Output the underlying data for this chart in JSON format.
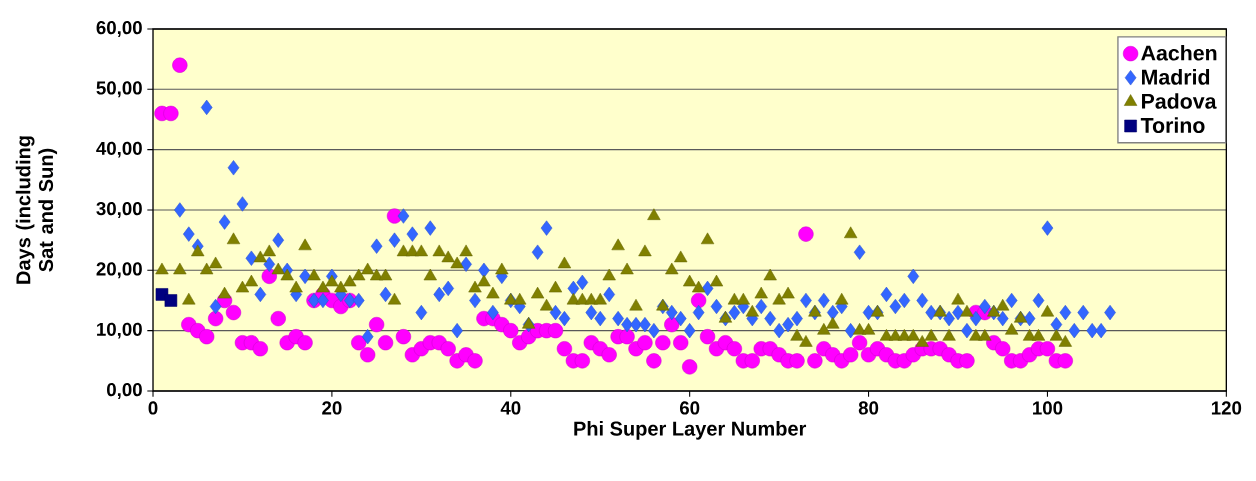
{
  "chart_data": {
    "type": "scatter",
    "xlabel": "Phi Super Layer Number",
    "ylabel": "Days (including Sat and Sun)",
    "xlim": [
      0,
      120
    ],
    "xticks": [
      0,
      20,
      40,
      60,
      80,
      100,
      120
    ],
    "ylim": [
      0,
      60
    ],
    "yticks": [
      {
        "value": 0,
        "label": "0,00"
      },
      {
        "value": 10,
        "label": "10,00"
      },
      {
        "value": 20,
        "label": "20,00"
      },
      {
        "value": 30,
        "label": "30,00"
      },
      {
        "value": 40,
        "label": "40,00"
      },
      {
        "value": 50,
        "label": "50,00"
      },
      {
        "value": 60,
        "label": "60,00"
      }
    ],
    "grid": "y",
    "legend": "top right",
    "series": [
      {
        "name": "Aachen",
        "color": "#ff00ff",
        "marker": "circle",
        "x": [
          1,
          2,
          3,
          4,
          5,
          6,
          7,
          8,
          9,
          10,
          11,
          12,
          13,
          14,
          15,
          16,
          17,
          18,
          19,
          20,
          21,
          22,
          23,
          24,
          25,
          26,
          27,
          28,
          29,
          30,
          31,
          32,
          33,
          34,
          35,
          36,
          37,
          38,
          39,
          40,
          41,
          42,
          43,
          44,
          45,
          46,
          47,
          48,
          49,
          50,
          51,
          52,
          53,
          54,
          55,
          56,
          57,
          58,
          59,
          60,
          61,
          62,
          63,
          64,
          65,
          66,
          67,
          68,
          69,
          70,
          71,
          72,
          73,
          74,
          75,
          76,
          77,
          78,
          79,
          80,
          81,
          82,
          83,
          84,
          85,
          86,
          87,
          88,
          89,
          90,
          91,
          92,
          93,
          94,
          95,
          96,
          97,
          98,
          99,
          100,
          101,
          102
        ],
        "values": [
          46,
          46,
          54,
          11,
          10,
          9,
          12,
          15,
          13,
          8,
          8,
          7,
          19,
          12,
          8,
          9,
          8,
          15,
          16,
          15,
          14,
          15,
          8,
          6,
          11,
          8,
          29,
          9,
          6,
          7,
          8,
          8,
          7,
          5,
          6,
          5,
          12,
          12,
          11,
          10,
          8,
          9,
          10,
          10,
          10,
          7,
          5,
          5,
          8,
          7,
          6,
          9,
          9,
          7,
          8,
          5,
          8,
          11,
          8,
          4,
          15,
          9,
          7,
          8,
          7,
          5,
          5,
          7,
          7,
          6,
          5,
          5,
          26,
          5,
          7,
          6,
          5,
          6,
          8,
          6,
          7,
          6,
          5,
          5,
          6,
          7,
          7,
          7,
          6,
          5,
          5,
          13,
          13,
          8,
          7,
          5,
          5,
          6,
          7,
          7,
          5,
          5
        ]
      },
      {
        "name": "Madrid",
        "color": "#3366ff",
        "marker": "diamond",
        "x": [
          3,
          4,
          5,
          6,
          7,
          8,
          9,
          10,
          11,
          12,
          13,
          14,
          15,
          16,
          17,
          18,
          19,
          20,
          21,
          22,
          23,
          24,
          25,
          26,
          27,
          28,
          29,
          30,
          31,
          32,
          33,
          34,
          35,
          36,
          37,
          38,
          39,
          40,
          41,
          42,
          43,
          44,
          45,
          46,
          47,
          48,
          49,
          50,
          51,
          52,
          53,
          54,
          55,
          56,
          57,
          58,
          59,
          60,
          61,
          62,
          63,
          64,
          65,
          66,
          67,
          68,
          69,
          70,
          71,
          72,
          73,
          74,
          75,
          76,
          77,
          78,
          79,
          80,
          81,
          82,
          83,
          84,
          85,
          86,
          87,
          88,
          89,
          90,
          91,
          92,
          93,
          94,
          95,
          96,
          97,
          98,
          99,
          100,
          101,
          102,
          103,
          104,
          105,
          106,
          107
        ],
        "values": [
          30,
          26,
          24,
          47,
          14,
          28,
          37,
          31,
          22,
          16,
          21,
          25,
          20,
          16,
          19,
          15,
          15,
          19,
          16,
          15,
          15,
          9,
          24,
          16,
          25,
          29,
          26,
          13,
          27,
          16,
          17,
          10,
          21,
          15,
          20,
          13,
          19,
          15,
          14,
          11,
          23,
          27,
          13,
          12,
          17,
          18,
          13,
          12,
          16,
          12,
          11,
          11,
          11,
          10,
          14,
          13,
          12,
          10,
          13,
          17,
          14,
          12,
          13,
          14,
          12,
          14,
          12,
          10,
          11,
          12,
          15,
          13,
          15,
          13,
          14,
          10,
          23,
          13,
          13,
          16,
          14,
          15,
          19,
          15,
          13,
          13,
          12,
          13,
          10,
          12,
          14,
          13,
          12,
          15,
          12,
          12,
          15,
          27,
          11,
          13,
          10,
          13,
          10,
          10,
          13
        ]
      },
      {
        "name": "Padova",
        "color": "#808000",
        "marker": "triangle",
        "x": [
          1,
          2,
          3,
          4,
          5,
          6,
          7,
          8,
          9,
          10,
          11,
          12,
          13,
          14,
          15,
          16,
          17,
          18,
          19,
          20,
          21,
          22,
          23,
          24,
          25,
          26,
          27,
          28,
          29,
          30,
          31,
          32,
          33,
          34,
          35,
          36,
          37,
          38,
          39,
          40,
          41,
          42,
          43,
          44,
          45,
          46,
          47,
          48,
          49,
          50,
          51,
          52,
          53,
          54,
          55,
          56,
          57,
          58,
          59,
          60,
          61,
          62,
          63,
          64,
          65,
          66,
          67,
          68,
          69,
          70,
          71,
          72,
          73,
          74,
          75,
          76,
          77,
          78,
          79,
          80,
          81,
          82,
          83,
          84,
          85,
          86,
          87,
          88,
          89,
          90,
          91,
          92,
          93,
          94,
          95,
          96,
          97,
          98,
          99,
          100,
          101,
          102
        ],
        "values": [
          20,
          null,
          20,
          15,
          23,
          20,
          21,
          16,
          25,
          17,
          18,
          22,
          23,
          20,
          19,
          17,
          24,
          19,
          17,
          18,
          17,
          18,
          19,
          20,
          19,
          19,
          15,
          23,
          23,
          23,
          19,
          23,
          22,
          21,
          23,
          17,
          18,
          16,
          20,
          15,
          15,
          11,
          16,
          14,
          17,
          21,
          15,
          15,
          15,
          15,
          19,
          24,
          20,
          14,
          23,
          29,
          14,
          20,
          22,
          18,
          17,
          25,
          18,
          12,
          15,
          15,
          13,
          16,
          19,
          15,
          16,
          9,
          8,
          13,
          10,
          11,
          15,
          26,
          10,
          10,
          13,
          9,
          9,
          9,
          9,
          8,
          9,
          13,
          9,
          15,
          13,
          9,
          9,
          13,
          14,
          10,
          12,
          9,
          9,
          13,
          9,
          8
        ]
      },
      {
        "name": "Torino",
        "color": "#000080",
        "marker": "square",
        "x": [
          1,
          2
        ],
        "values": [
          16,
          15
        ]
      }
    ]
  }
}
